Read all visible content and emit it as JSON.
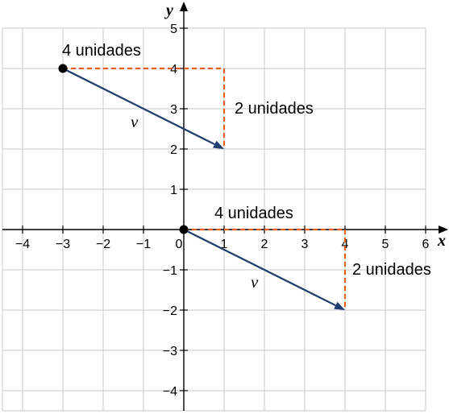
{
  "chart_data": {
    "type": "scatter",
    "title": "",
    "xlabel": "x",
    "ylabel": "y",
    "xlim": [
      -4,
      6
    ],
    "ylim": [
      -4,
      5
    ],
    "grid": true,
    "x_ticks": [
      "−4",
      "−3",
      "−2",
      "−1",
      "0",
      "1",
      "2",
      "3",
      "4",
      "5",
      "6"
    ],
    "y_ticks": [
      "5",
      "4",
      "3",
      "2",
      "1",
      "−1",
      "−2",
      "−3",
      "−4"
    ],
    "colors": {
      "vector": "#1f3c6e",
      "guide": "#e06020",
      "point": "#000000"
    },
    "vectors": [
      {
        "label": "v",
        "from": [
          -3,
          4
        ],
        "to": [
          1,
          2
        ],
        "horizontal_label": "4 unidades",
        "vertical_label": "2 unidades"
      },
      {
        "label": "v",
        "from": [
          0,
          0
        ],
        "to": [
          4,
          -2
        ],
        "horizontal_label": "4 unidades",
        "vertical_label": "2 unidades"
      }
    ]
  }
}
